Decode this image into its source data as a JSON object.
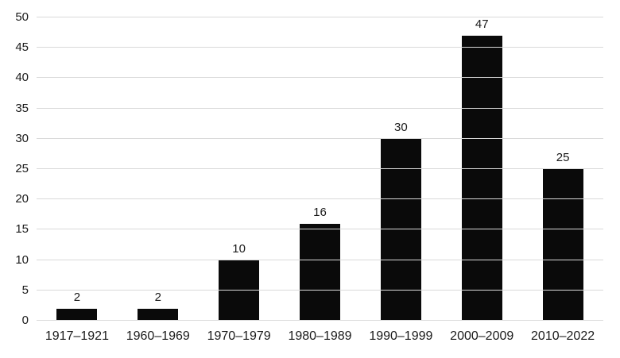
{
  "chart_data": {
    "type": "bar",
    "categories": [
      "1917–1921",
      "1960–1969",
      "1970–1979",
      "1980–1989",
      "1990–1999",
      "2000–2009",
      "2010–2022"
    ],
    "values": [
      2,
      2,
      10,
      16,
      30,
      47,
      25
    ],
    "title": "",
    "xlabel": "",
    "ylabel": "",
    "ylim": [
      0,
      50
    ],
    "yticks": [
      0,
      5,
      10,
      15,
      20,
      25,
      30,
      35,
      40,
      45,
      50
    ],
    "grid": true,
    "legend": "none",
    "bar_color": "#0a0a0a",
    "grid_color": "#d9d9d9",
    "text_color": "#1a1a1a",
    "background_color": "#ffffff"
  }
}
